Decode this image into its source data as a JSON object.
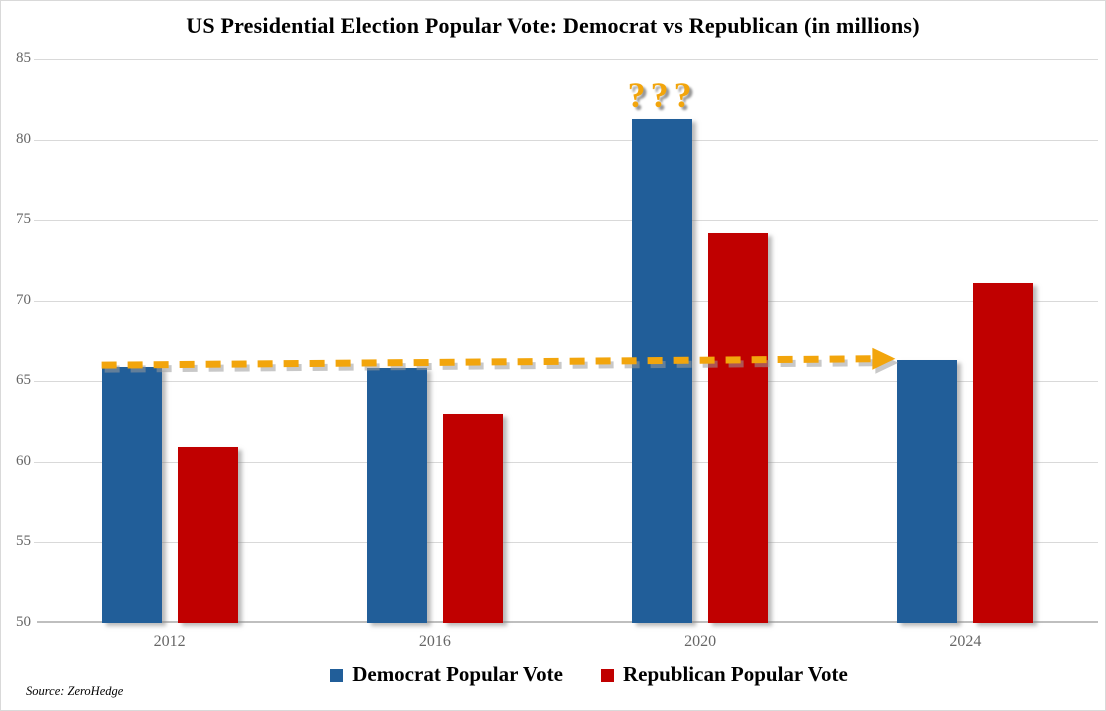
{
  "chart_data": {
    "type": "bar",
    "title": "US Presidential Election Popular Vote: Democrat vs Republican (in millions)",
    "categories": [
      "2012",
      "2016",
      "2020",
      "2024"
    ],
    "series": [
      {
        "name": "Democrat Popular Vote",
        "color": "#215E99",
        "values": [
          65.9,
          65.8,
          81.3,
          66.3
        ]
      },
      {
        "name": "Republican Popular Vote",
        "color": "#C00000",
        "values": [
          60.9,
          63.0,
          74.2,
          71.1
        ]
      }
    ],
    "ylim": [
      50,
      85
    ],
    "yticks": [
      50,
      55,
      60,
      65,
      70,
      75,
      80,
      85
    ],
    "xlabel": "",
    "ylabel": "",
    "grid": true,
    "legend_position": "bottom",
    "annotations": {
      "question_marks": {
        "text": "???",
        "color": "#F2A50C",
        "above_series": "Democrat Popular Vote",
        "above_category": "2020"
      },
      "arrow": {
        "style": "dashed",
        "color": "#F2A50C",
        "shadow_color": "#9B9B9B",
        "from_category": "2012",
        "to_category": "2024",
        "from_value": 66.0,
        "to_value": 66.4
      }
    },
    "source": "Source: ZeroHedge",
    "colors": {
      "gridline": "#D9D9D9",
      "axis_line": "#BFBFBF",
      "tick_text": "#666666",
      "title_text": "#000000"
    }
  }
}
